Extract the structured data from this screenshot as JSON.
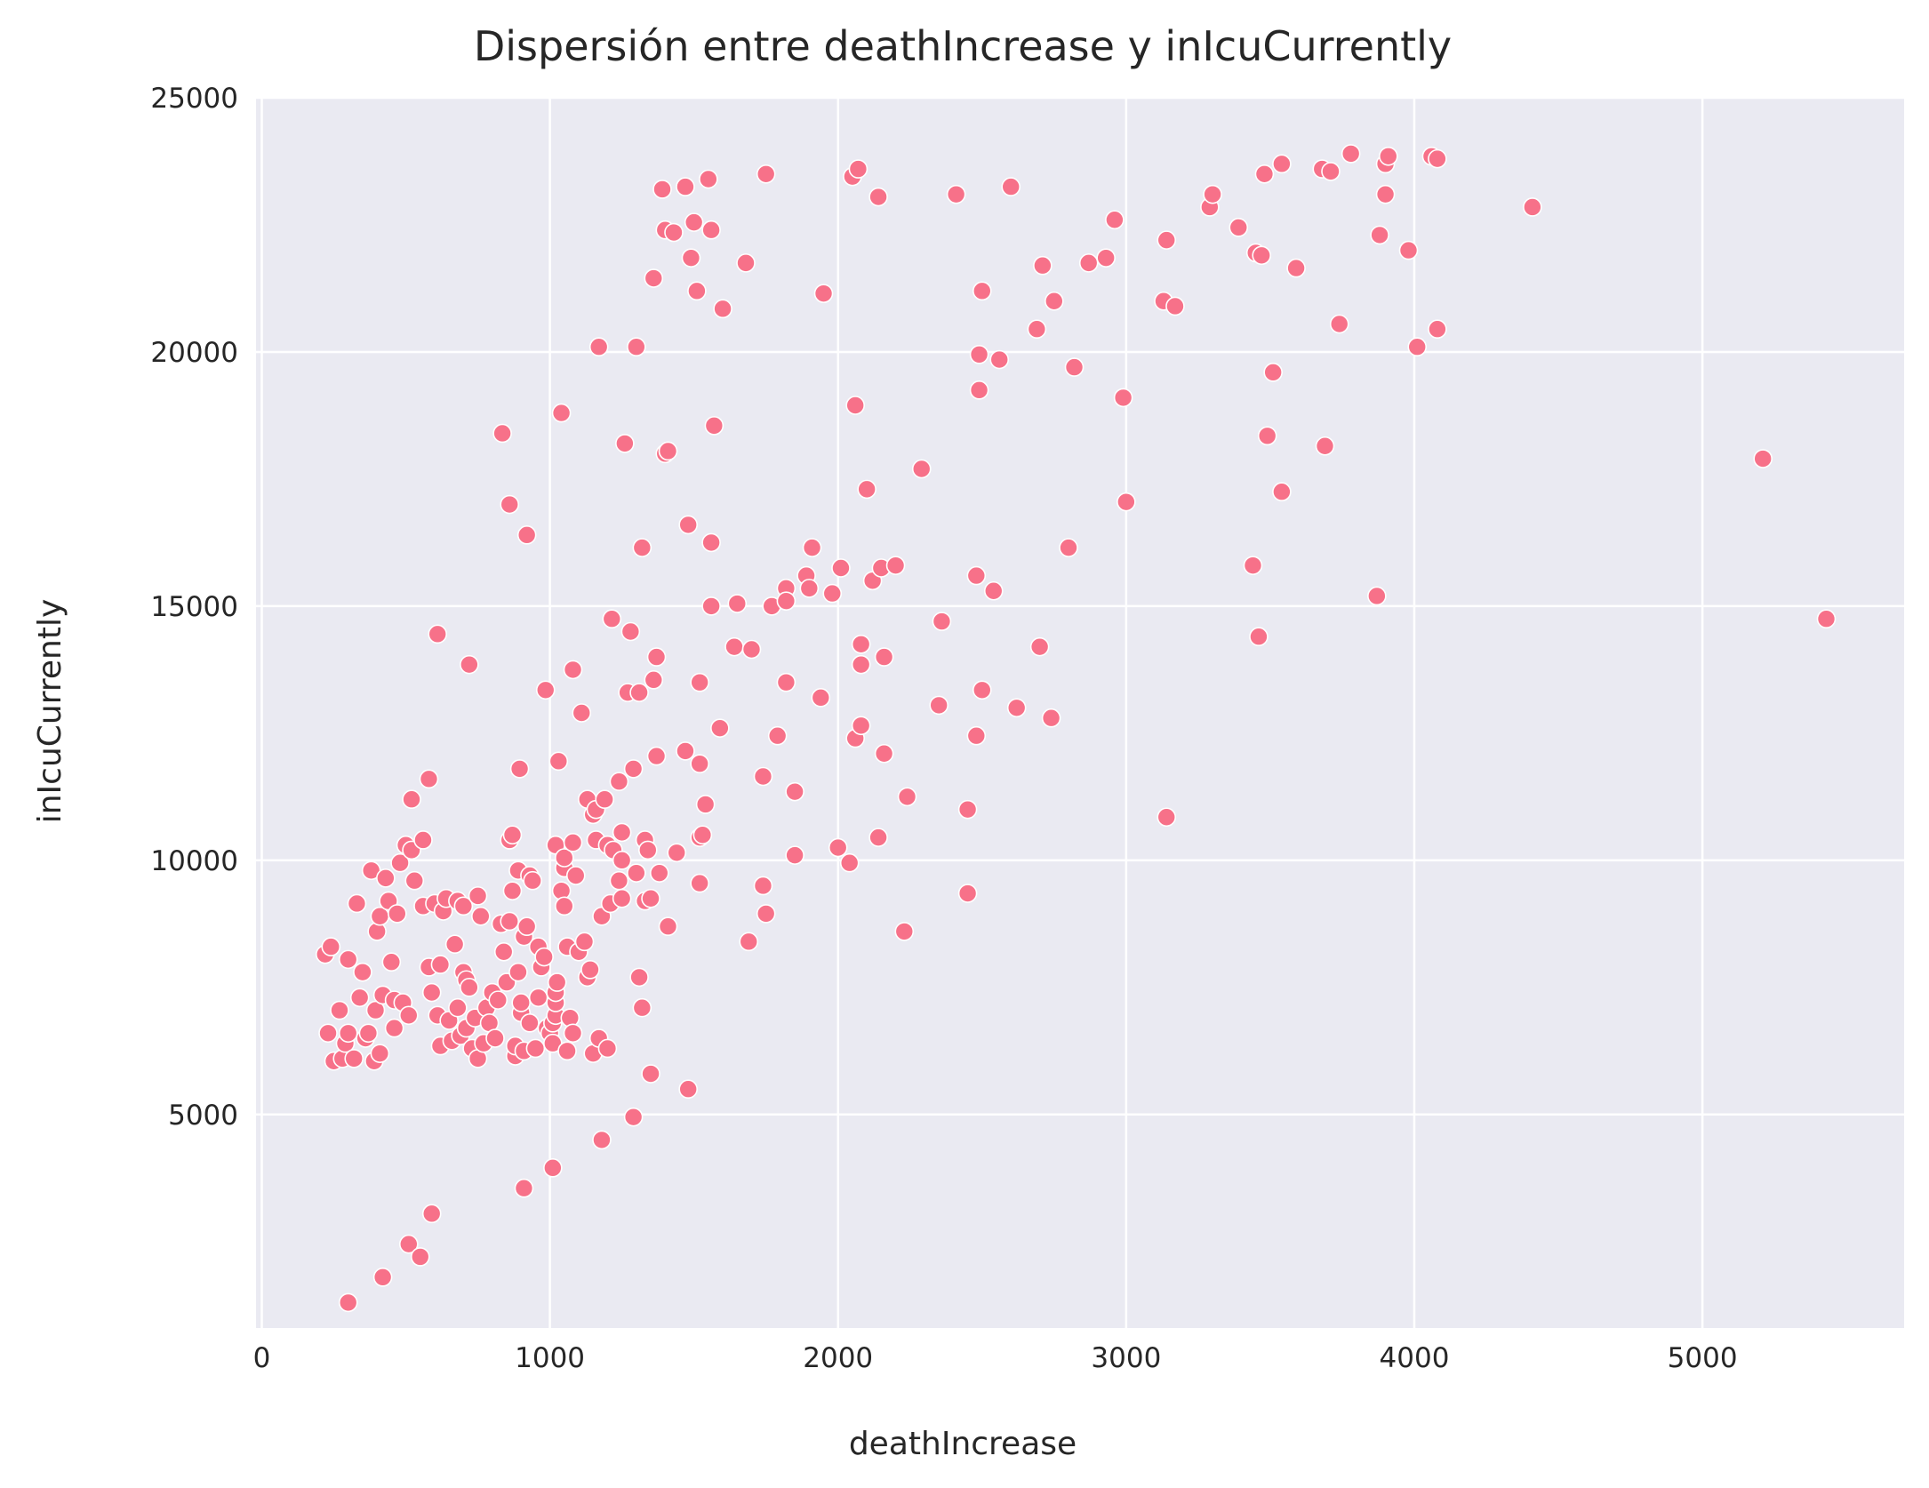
{
  "colors": {
    "background": "#ffffff",
    "plot_background": "#eaeaf2",
    "grid": "#ffffff",
    "point": "#f77189",
    "text": "#262626"
  },
  "chart_data": {
    "type": "scatter",
    "title": "Dispersión entre deathIncrease y inIcuCurrently",
    "xlabel": "deathIncrease",
    "ylabel": "inIcuCurrently",
    "xlim": [
      -20,
      5700
    ],
    "ylim": [
      800,
      25000
    ],
    "xticks": [
      0,
      1000,
      2000,
      3000,
      4000,
      5000
    ],
    "yticks": [
      5000,
      10000,
      15000,
      20000,
      25000
    ],
    "xtick_labels": [
      "0",
      "1000",
      "2000",
      "3000",
      "4000",
      "5000"
    ],
    "ytick_labels": [
      "5000",
      "10000",
      "15000",
      "20000",
      "25000"
    ],
    "grid": true,
    "points": [
      [
        220,
        8150
      ],
      [
        240,
        8300
      ],
      [
        230,
        6600
      ],
      [
        250,
        6050
      ],
      [
        270,
        7050
      ],
      [
        280,
        6100
      ],
      [
        290,
        6400
      ],
      [
        300,
        6600
      ],
      [
        300,
        8050
      ],
      [
        320,
        6100
      ],
      [
        330,
        9150
      ],
      [
        340,
        7300
      ],
      [
        350,
        7800
      ],
      [
        360,
        6500
      ],
      [
        370,
        6600
      ],
      [
        380,
        9800
      ],
      [
        390,
        6050
      ],
      [
        395,
        7050
      ],
      [
        400,
        8600
      ],
      [
        410,
        6200
      ],
      [
        410,
        8900
      ],
      [
        420,
        7350
      ],
      [
        430,
        9650
      ],
      [
        440,
        9200
      ],
      [
        450,
        8000
      ],
      [
        460,
        7250
      ],
      [
        460,
        6700
      ],
      [
        470,
        8950
      ],
      [
        480,
        9950
      ],
      [
        490,
        7200
      ],
      [
        500,
        10300
      ],
      [
        510,
        6950
      ],
      [
        520,
        10200
      ],
      [
        520,
        11200
      ],
      [
        530,
        9600
      ],
      [
        560,
        9100
      ],
      [
        560,
        10400
      ],
      [
        580,
        11600
      ],
      [
        580,
        7900
      ],
      [
        590,
        7400
      ],
      [
        600,
        9150
      ],
      [
        610,
        14450
      ],
      [
        610,
        6950
      ],
      [
        620,
        7950
      ],
      [
        620,
        6350
      ],
      [
        630,
        9000
      ],
      [
        640,
        9250
      ],
      [
        650,
        6850
      ],
      [
        660,
        6450
      ],
      [
        670,
        8350
      ],
      [
        680,
        9200
      ],
      [
        680,
        7100
      ],
      [
        690,
        6550
      ],
      [
        700,
        9100
      ],
      [
        700,
        7800
      ],
      [
        710,
        7650
      ],
      [
        710,
        6700
      ],
      [
        720,
        13850
      ],
      [
        720,
        7500
      ],
      [
        730,
        6300
      ],
      [
        740,
        6900
      ],
      [
        750,
        6100
      ],
      [
        750,
        9300
      ],
      [
        760,
        8900
      ],
      [
        770,
        6400
      ],
      [
        780,
        7100
      ],
      [
        790,
        6800
      ],
      [
        800,
        7400
      ],
      [
        810,
        6500
      ],
      [
        820,
        7250
      ],
      [
        830,
        8750
      ],
      [
        835,
        18400
      ],
      [
        840,
        8200
      ],
      [
        850,
        7600
      ],
      [
        860,
        8800
      ],
      [
        860,
        17000
      ],
      [
        860,
        10400
      ],
      [
        870,
        10500
      ],
      [
        870,
        9400
      ],
      [
        880,
        6150
      ],
      [
        880,
        6350
      ],
      [
        890,
        7800
      ],
      [
        890,
        9800
      ],
      [
        895,
        11800
      ],
      [
        900,
        7000
      ],
      [
        900,
        7200
      ],
      [
        910,
        8500
      ],
      [
        910,
        6250
      ],
      [
        920,
        8700
      ],
      [
        920,
        16400
      ],
      [
        930,
        9700
      ],
      [
        930,
        6800
      ],
      [
        940,
        9600
      ],
      [
        950,
        6300
      ],
      [
        960,
        8300
      ],
      [
        960,
        7300
      ],
      [
        970,
        7900
      ],
      [
        980,
        8100
      ],
      [
        985,
        13350
      ],
      [
        990,
        6700
      ],
      [
        1000,
        6600
      ],
      [
        1010,
        6400
      ],
      [
        1010,
        6800
      ],
      [
        1020,
        6950
      ],
      [
        1020,
        7200
      ],
      [
        1020,
        7400
      ],
      [
        1025,
        7600
      ],
      [
        1020,
        10300
      ],
      [
        1030,
        11950
      ],
      [
        1040,
        9400
      ],
      [
        1040,
        18800
      ],
      [
        1050,
        9850
      ],
      [
        1050,
        10050
      ],
      [
        1050,
        9100
      ],
      [
        1060,
        8300
      ],
      [
        1060,
        6250
      ],
      [
        1070,
        6900
      ],
      [
        1080,
        6600
      ],
      [
        1080,
        10350
      ],
      [
        1080,
        13750
      ],
      [
        1090,
        9700
      ],
      [
        1100,
        8200
      ],
      [
        1110,
        12900
      ],
      [
        1120,
        8400
      ],
      [
        1130,
        11200
      ],
      [
        1130,
        7700
      ],
      [
        1140,
        7850
      ],
      [
        1150,
        10900
      ],
      [
        1150,
        6200
      ],
      [
        1160,
        11000
      ],
      [
        1160,
        10400
      ],
      [
        1170,
        20100
      ],
      [
        1170,
        6500
      ],
      [
        1180,
        8900
      ],
      [
        1190,
        11200
      ],
      [
        1200,
        6300
      ],
      [
        1200,
        10300
      ],
      [
        1210,
        9150
      ],
      [
        1215,
        14750
      ],
      [
        1220,
        10200
      ],
      [
        1240,
        9600
      ],
      [
        1240,
        11550
      ],
      [
        1250,
        10550
      ],
      [
        1250,
        10000
      ],
      [
        1250,
        9250
      ],
      [
        1260,
        18200
      ],
      [
        1270,
        13300
      ],
      [
        1280,
        14500
      ],
      [
        1290,
        11800
      ],
      [
        1300,
        9750
      ],
      [
        1300,
        20100
      ],
      [
        1310,
        7700
      ],
      [
        1310,
        13300
      ],
      [
        1320,
        16150
      ],
      [
        1320,
        7100
      ],
      [
        1330,
        9200
      ],
      [
        1330,
        10400
      ],
      [
        1340,
        10200
      ],
      [
        1350,
        5800
      ],
      [
        1350,
        9250
      ],
      [
        1360,
        21450
      ],
      [
        1360,
        13550
      ],
      [
        1370,
        12050
      ],
      [
        1370,
        14000
      ],
      [
        1380,
        9750
      ],
      [
        1390,
        23200
      ],
      [
        1400,
        22400
      ],
      [
        1400,
        18000
      ],
      [
        1410,
        18050
      ],
      [
        1410,
        8700
      ],
      [
        1430,
        22350
      ],
      [
        1440,
        10150
      ],
      [
        1470,
        23250
      ],
      [
        1470,
        12150
      ],
      [
        1480,
        16600
      ],
      [
        1480,
        5500
      ],
      [
        1490,
        21850
      ],
      [
        1500,
        22550
      ],
      [
        1510,
        21200
      ],
      [
        1520,
        9550
      ],
      [
        1520,
        13500
      ],
      [
        1520,
        11900
      ],
      [
        1520,
        10450
      ],
      [
        1530,
        10500
      ],
      [
        1540,
        11100
      ],
      [
        1550,
        23400
      ],
      [
        1560,
        15000
      ],
      [
        1560,
        16250
      ],
      [
        1560,
        22400
      ],
      [
        1570,
        18550
      ],
      [
        1590,
        12600
      ],
      [
        1600,
        20850
      ],
      [
        1640,
        14200
      ],
      [
        1650,
        15050
      ],
      [
        1680,
        21750
      ],
      [
        1690,
        8400
      ],
      [
        1700,
        14150
      ],
      [
        1740,
        11650
      ],
      [
        1740,
        9500
      ],
      [
        1750,
        23500
      ],
      [
        1750,
        8950
      ],
      [
        1770,
        15000
      ],
      [
        1790,
        12450
      ],
      [
        1820,
        15350
      ],
      [
        1820,
        15100
      ],
      [
        1820,
        13500
      ],
      [
        1850,
        11350
      ],
      [
        1850,
        10100
      ],
      [
        1890,
        15600
      ],
      [
        1900,
        15350
      ],
      [
        1910,
        16150
      ],
      [
        1940,
        13200
      ],
      [
        1950,
        21150
      ],
      [
        1980,
        15250
      ],
      [
        2000,
        10250
      ],
      [
        2010,
        15750
      ],
      [
        2040,
        9950
      ],
      [
        2050,
        23450
      ],
      [
        2060,
        12400
      ],
      [
        2060,
        18950
      ],
      [
        2070,
        23600
      ],
      [
        2080,
        14250
      ],
      [
        2080,
        13850
      ],
      [
        2080,
        12650
      ],
      [
        2100,
        17300
      ],
      [
        2120,
        15500
      ],
      [
        2140,
        10450
      ],
      [
        2140,
        23050
      ],
      [
        2150,
        15750
      ],
      [
        2160,
        14000
      ],
      [
        2160,
        12100
      ],
      [
        2200,
        15800
      ],
      [
        2230,
        8600
      ],
      [
        2240,
        11250
      ],
      [
        2290,
        17700
      ],
      [
        2350,
        13050
      ],
      [
        2360,
        14700
      ],
      [
        2410,
        23100
      ],
      [
        2450,
        11000
      ],
      [
        2450,
        9350
      ],
      [
        2480,
        15600
      ],
      [
        2480,
        12450
      ],
      [
        2490,
        19950
      ],
      [
        2490,
        19250
      ],
      [
        2500,
        13350
      ],
      [
        2500,
        21200
      ],
      [
        2540,
        15300
      ],
      [
        2560,
        19850
      ],
      [
        2600,
        23250
      ],
      [
        2620,
        13000
      ],
      [
        2690,
        20450
      ],
      [
        2700,
        14200
      ],
      [
        2710,
        21700
      ],
      [
        2740,
        12800
      ],
      [
        2750,
        21000
      ],
      [
        2800,
        16150
      ],
      [
        2820,
        19700
      ],
      [
        2870,
        21750
      ],
      [
        2930,
        21850
      ],
      [
        2960,
        22600
      ],
      [
        2990,
        19100
      ],
      [
        3000,
        17050
      ],
      [
        3130,
        21000
      ],
      [
        3140,
        22200
      ],
      [
        3140,
        10850
      ],
      [
        3170,
        20900
      ],
      [
        3290,
        22850
      ],
      [
        3300,
        23100
      ],
      [
        3390,
        22450
      ],
      [
        3440,
        15800
      ],
      [
        3450,
        21950
      ],
      [
        3460,
        14400
      ],
      [
        3470,
        21900
      ],
      [
        3480,
        23500
      ],
      [
        3490,
        18350
      ],
      [
        3510,
        19600
      ],
      [
        3540,
        23700
      ],
      [
        3540,
        17250
      ],
      [
        3590,
        21650
      ],
      [
        3680,
        23600
      ],
      [
        3690,
        18150
      ],
      [
        3710,
        23550
      ],
      [
        3740,
        20550
      ],
      [
        3780,
        23900
      ],
      [
        3870,
        15200
      ],
      [
        3880,
        22300
      ],
      [
        3900,
        23700
      ],
      [
        3900,
        23100
      ],
      [
        3910,
        23850
      ],
      [
        3980,
        22000
      ],
      [
        4010,
        20100
      ],
      [
        4060,
        23850
      ],
      [
        4080,
        23800
      ],
      [
        4080,
        20450
      ],
      [
        4410,
        22850
      ],
      [
        5210,
        17900
      ],
      [
        5430,
        14750
      ],
      [
        300,
        1300
      ],
      [
        420,
        1800
      ],
      [
        510,
        2450
      ],
      [
        550,
        2200
      ],
      [
        590,
        3050
      ],
      [
        910,
        3550
      ],
      [
        1010,
        3950
      ],
      [
        1180,
        4500
      ],
      [
        1290,
        4950
      ]
    ]
  }
}
